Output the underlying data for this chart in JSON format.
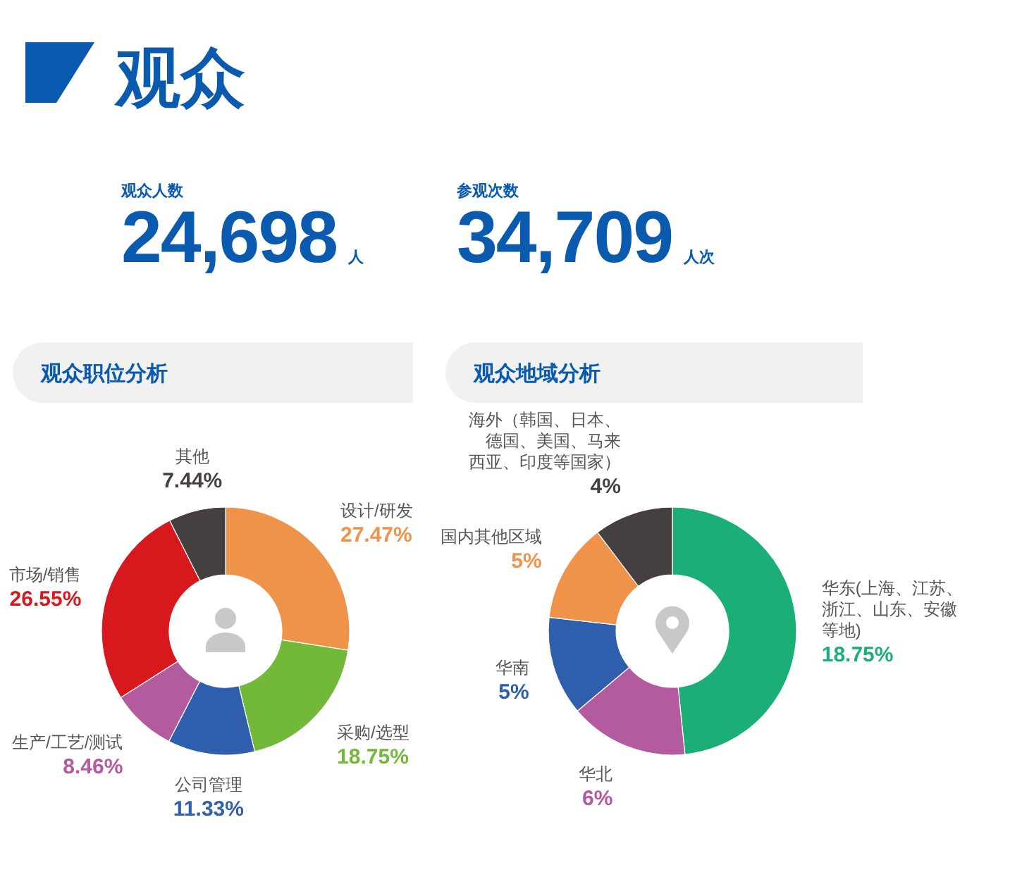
{
  "chart_data": [
    {
      "type": "other",
      "title": "观众",
      "annotations": [
        "观众人数",
        "24,698",
        "人",
        "参观次数",
        "34,709",
        "人次"
      ]
    },
    {
      "type": "donut",
      "title": "观众职位分析",
      "categories": [
        "设计/研发",
        "采购/选型",
        "公司管理",
        "生产/工艺/测试",
        "市场/销售",
        "其他"
      ],
      "values": [
        27.47,
        18.75,
        11.33,
        8.46,
        26.55,
        7.44
      ],
      "colors": [
        "#f0934a",
        "#72b93a",
        "#2f5ead",
        "#b45a9e",
        "#d7181c",
        "#453f3f"
      ],
      "value_labels": [
        "27.47%",
        "18.75%",
        "11.33%",
        "8.46%",
        "26.55%",
        "7.44%"
      ]
    },
    {
      "type": "donut",
      "title": "观众地域分析",
      "categories": [
        "华东(上海、江苏、浙江、山东、安徽等地)",
        "华北",
        "华南",
        "国内其他区域",
        "海外（韩国、日本、德国、美国、马来西亚、印度等国家）"
      ],
      "values": [
        18.75,
        6,
        5,
        5,
        4
      ],
      "colors": [
        "#1baf77",
        "#b45a9e",
        "#2f5ead",
        "#f0934a",
        "#453f3f"
      ],
      "value_labels": [
        "18.75%",
        "6%",
        "5%",
        "5%",
        "4%"
      ]
    }
  ]
}
